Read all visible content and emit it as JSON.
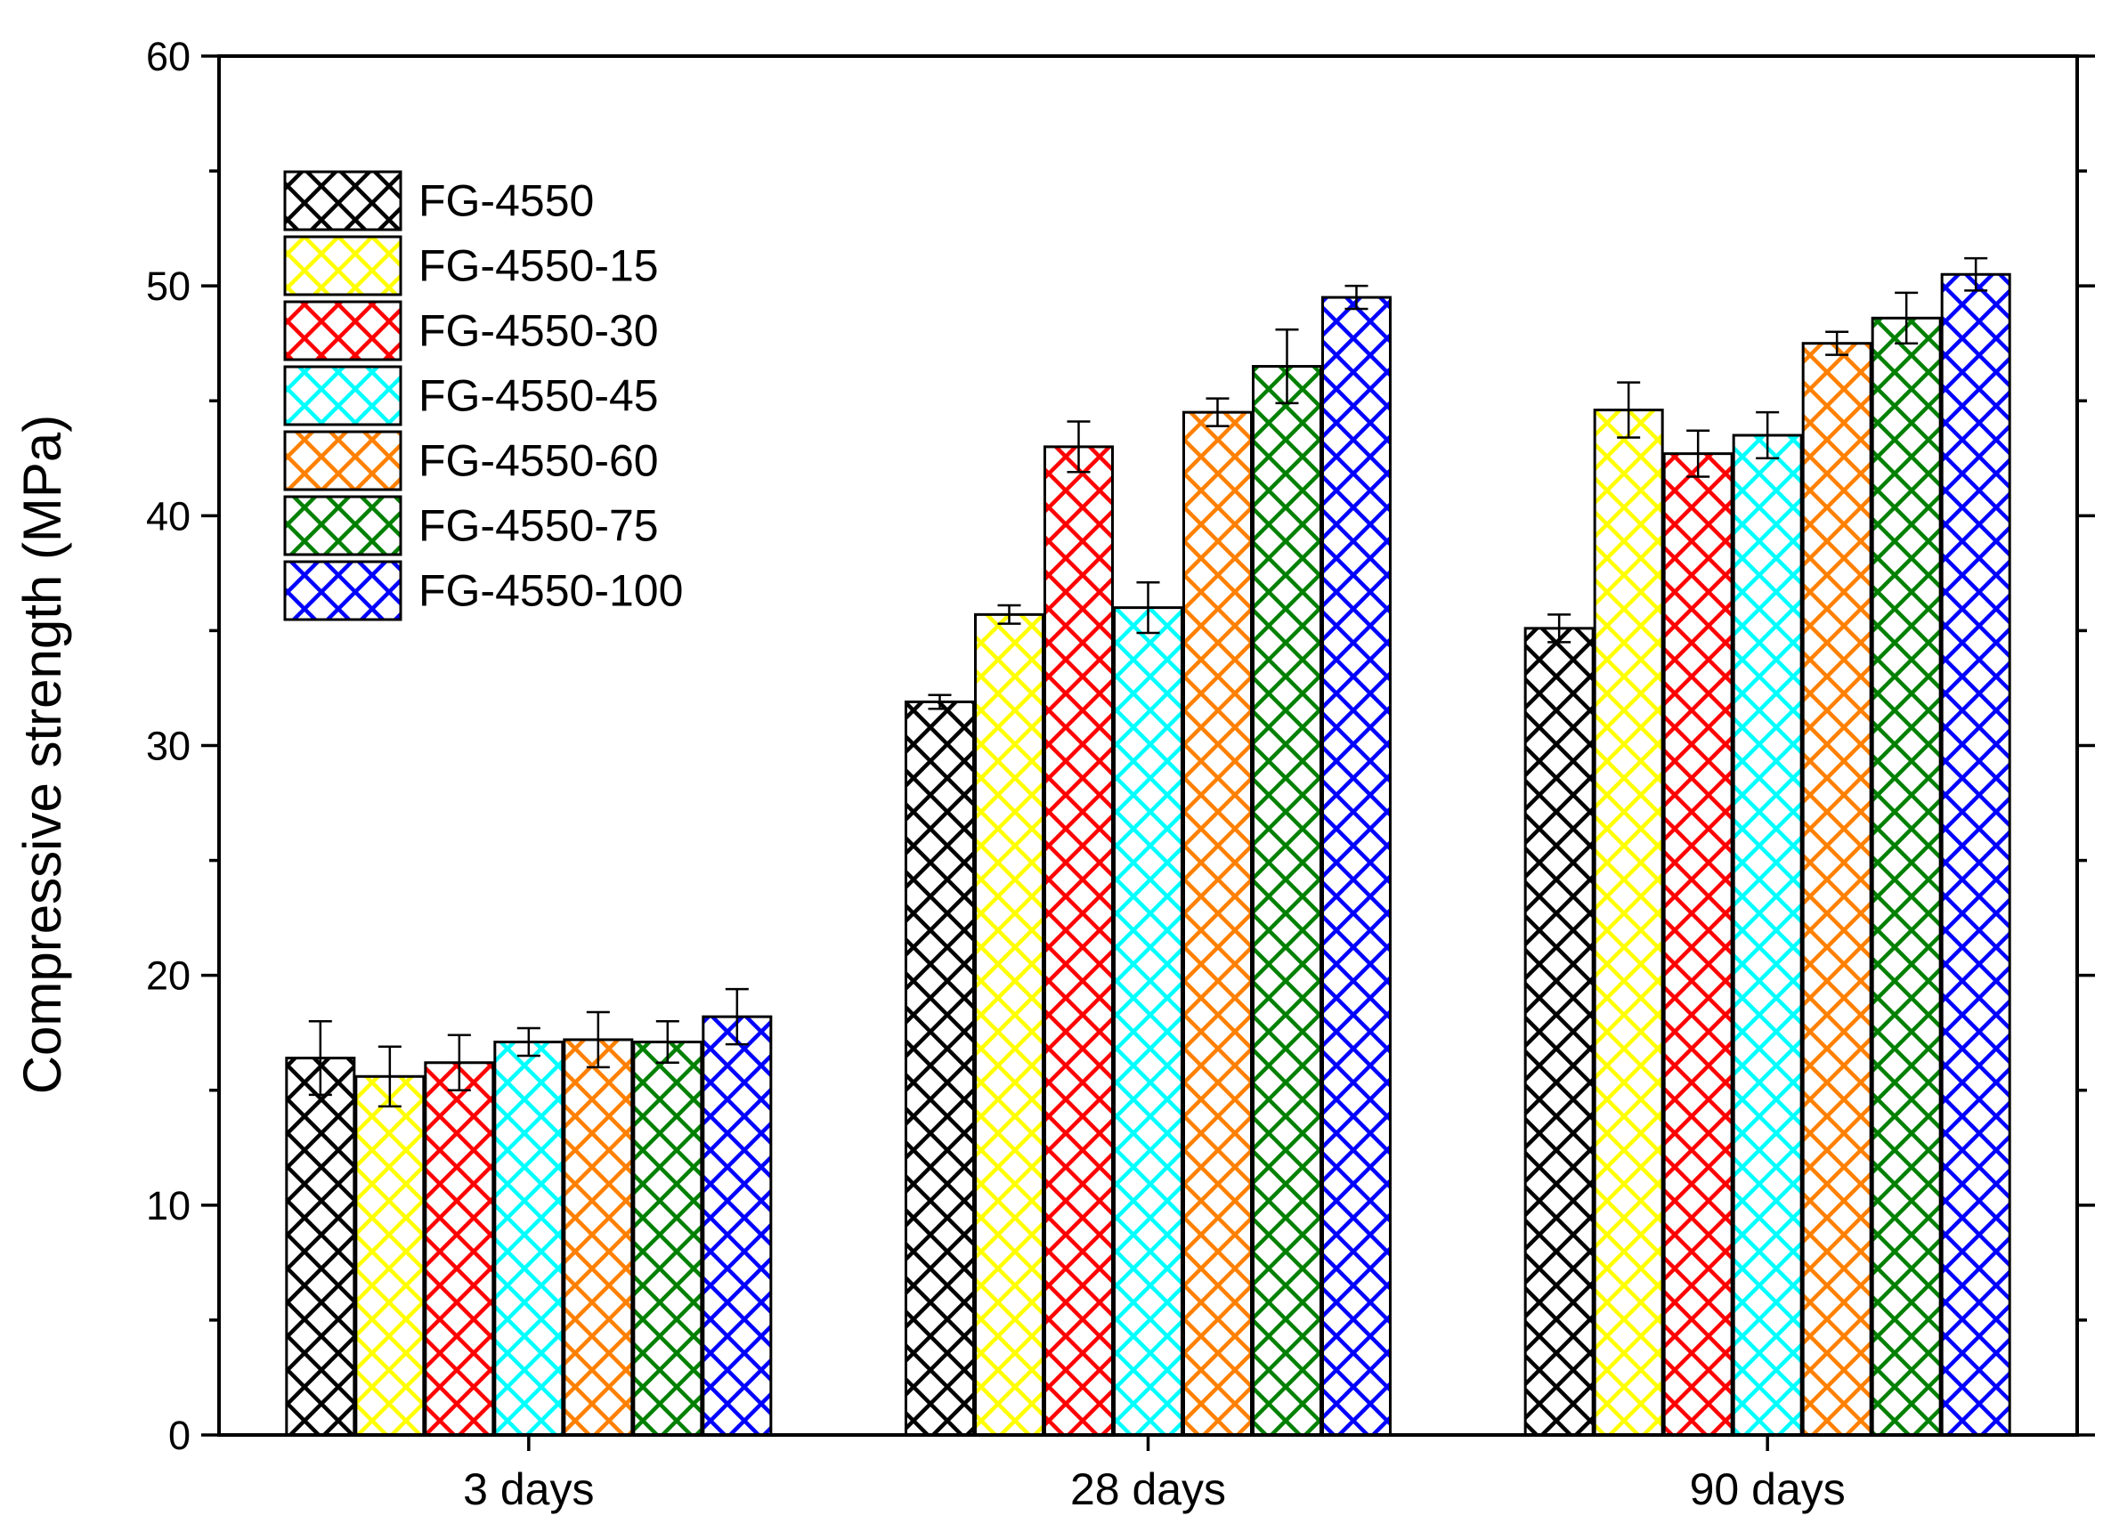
{
  "chart_data": {
    "type": "bar",
    "title": "",
    "xlabel": "",
    "ylabel": "Compressive strength (MPa)",
    "ylim": [
      0,
      60
    ],
    "yticks": [
      0,
      10,
      20,
      30,
      40,
      50,
      60
    ],
    "grid": false,
    "legend_position": "top-left",
    "categories": [
      "3 days",
      "28 days",
      "90 days"
    ],
    "series": [
      {
        "name": "FG-4550",
        "color": "#000000",
        "values": [
          16.4,
          31.9,
          35.1
        ],
        "errors": [
          1.6,
          0.3,
          0.6
        ]
      },
      {
        "name": "FG-4550-15",
        "color": "#ffff00",
        "values": [
          15.6,
          35.7,
          44.6
        ],
        "errors": [
          1.3,
          0.4,
          1.2
        ]
      },
      {
        "name": "FG-4550-30",
        "color": "#ff0000",
        "values": [
          16.2,
          43.0,
          42.7
        ],
        "errors": [
          1.2,
          1.1,
          1.0
        ]
      },
      {
        "name": "FG-4550-45",
        "color": "#00ffff",
        "values": [
          17.1,
          36.0,
          43.5
        ],
        "errors": [
          0.6,
          1.1,
          1.0
        ]
      },
      {
        "name": "FG-4550-60",
        "color": "#ff8000",
        "values": [
          17.2,
          44.5,
          47.5
        ],
        "errors": [
          1.2,
          0.6,
          0.5
        ]
      },
      {
        "name": "FG-4550-75",
        "color": "#008000",
        "values": [
          17.1,
          46.5,
          48.6
        ],
        "errors": [
          0.9,
          1.6,
          1.1
        ]
      },
      {
        "name": "FG-4550-100",
        "color": "#0000ff",
        "values": [
          18.2,
          49.5,
          50.5
        ],
        "errors": [
          1.2,
          0.5,
          0.7
        ]
      }
    ]
  }
}
